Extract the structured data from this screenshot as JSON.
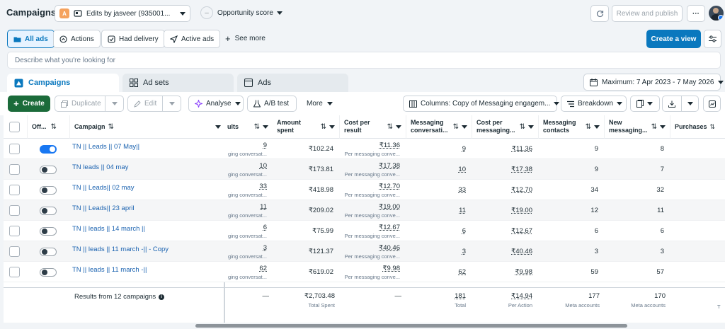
{
  "topbar": {
    "title": "Campaigns",
    "account_initial": "A",
    "account_label": "Edits by jasveer (935001...",
    "opportunity_label": "Opportunity score",
    "review_button": "Review and publish",
    "more_button": "···"
  },
  "filters": [
    {
      "label": "All ads",
      "icon": "folder-icon",
      "active": true
    },
    {
      "label": "Actions",
      "icon": "actions-icon",
      "active": false
    },
    {
      "label": "Had delivery",
      "icon": "delivery-icon",
      "active": false
    },
    {
      "label": "Active ads",
      "icon": "send-icon",
      "active": false
    }
  ],
  "see_more": "See more",
  "create_view": "Create a view",
  "search_placeholder": "Describe what you're looking for",
  "tabs": [
    "Campaigns",
    "Ad sets",
    "Ads"
  ],
  "date_range": "Maximum: 7 Apr 2023 - 7 May 2026",
  "toolbar": {
    "create": "Create",
    "duplicate": "Duplicate",
    "edit": "Edit",
    "analyse": "Analyse",
    "ab_test": "A/B test",
    "more": "More",
    "columns": "Columns: Copy of Messaging engagem...",
    "breakdown": "Breakdown"
  },
  "columns": {
    "off_on": "Off...",
    "campaign": "Campaign",
    "results": "ults",
    "amount_spent_1": "Amount",
    "amount_spent_2": "spent",
    "cost_per_result_1": "Cost per",
    "cost_per_result_2": "result",
    "messaging_conv_1": "Messaging",
    "messaging_conv_2": "conversati...",
    "cost_per_msg_1": "Cost per",
    "cost_per_msg_2": "messaging...",
    "messaging_contacts_1": "Messaging",
    "messaging_contacts_2": "contacts",
    "new_messaging_1": "New",
    "new_messaging_2": "messaging...",
    "purchases": "Purchases"
  },
  "rows": [
    {
      "on": true,
      "name": "TN || Leads || 07 May||",
      "results": "9",
      "results_sub": "ging conversat...",
      "spent": "₹102.24",
      "cpr": "₹11.36",
      "cpr_sub": "Per messaging conve...",
      "conv": "9",
      "cpm": "₹11.36",
      "contacts": "9",
      "new": "8"
    },
    {
      "on": false,
      "name": "TN leads || 04 may",
      "results": "10",
      "results_sub": "ging conversat...",
      "spent": "₹173.81",
      "cpr": "₹17.38",
      "cpr_sub": "Per messaging conve...",
      "conv": "10",
      "cpm": "₹17.38",
      "contacts": "9",
      "new": "7"
    },
    {
      "on": false,
      "name": "TN || Leads|| 02 may",
      "results": "33",
      "results_sub": "ging conversat...",
      "spent": "₹418.98",
      "cpr": "₹12.70",
      "cpr_sub": "Per messaging conve...",
      "conv": "33",
      "cpm": "₹12.70",
      "contacts": "34",
      "new": "32"
    },
    {
      "on": false,
      "name": "TN || Leads|| 23 april",
      "results": "11",
      "results_sub": "ging conversat...",
      "spent": "₹209.02",
      "cpr": "₹19.00",
      "cpr_sub": "Per messaging conve...",
      "conv": "11",
      "cpm": "₹19.00",
      "contacts": "12",
      "new": "11"
    },
    {
      "on": false,
      "name": "TN || leads || 14 march ||",
      "results": "6",
      "results_sub": "ging conversat...",
      "spent": "₹75.99",
      "cpr": "₹12.67",
      "cpr_sub": "Per messaging conve...",
      "conv": "6",
      "cpm": "₹12.67",
      "contacts": "6",
      "new": "6"
    },
    {
      "on": false,
      "name": "TN || leads || 11 march -|| - Copy",
      "results": "3",
      "results_sub": "ging conversat...",
      "spent": "₹121.37",
      "cpr": "₹40.46",
      "cpr_sub": "Per messaging conve...",
      "conv": "3",
      "cpm": "₹40.46",
      "contacts": "3",
      "new": "3"
    },
    {
      "on": false,
      "name": "TN || leads || 11 march -||",
      "results": "62",
      "results_sub": "ging conversat...",
      "spent": "₹619.02",
      "cpr": "₹9.98",
      "cpr_sub": "Per messaging conve...",
      "conv": "62",
      "cpm": "₹9.98",
      "contacts": "59",
      "new": "57"
    }
  ],
  "footer": {
    "label": "Results from 12 campaigns",
    "results": "—",
    "spent": "₹2,703.48",
    "spent_sub": "Total Spent",
    "cpr": "—",
    "conv": "181",
    "conv_sub": "Total",
    "cpm": "₹14.94",
    "cpm_sub": "Per Action",
    "contacts": "177",
    "contacts_sub": "Meta accounts",
    "new": "170",
    "new_sub": "Meta accounts",
    "purchases": "T"
  },
  "colors": {
    "accent": "#0a78be",
    "create_green": "#1b6b3a",
    "link": "#1a62b0"
  }
}
